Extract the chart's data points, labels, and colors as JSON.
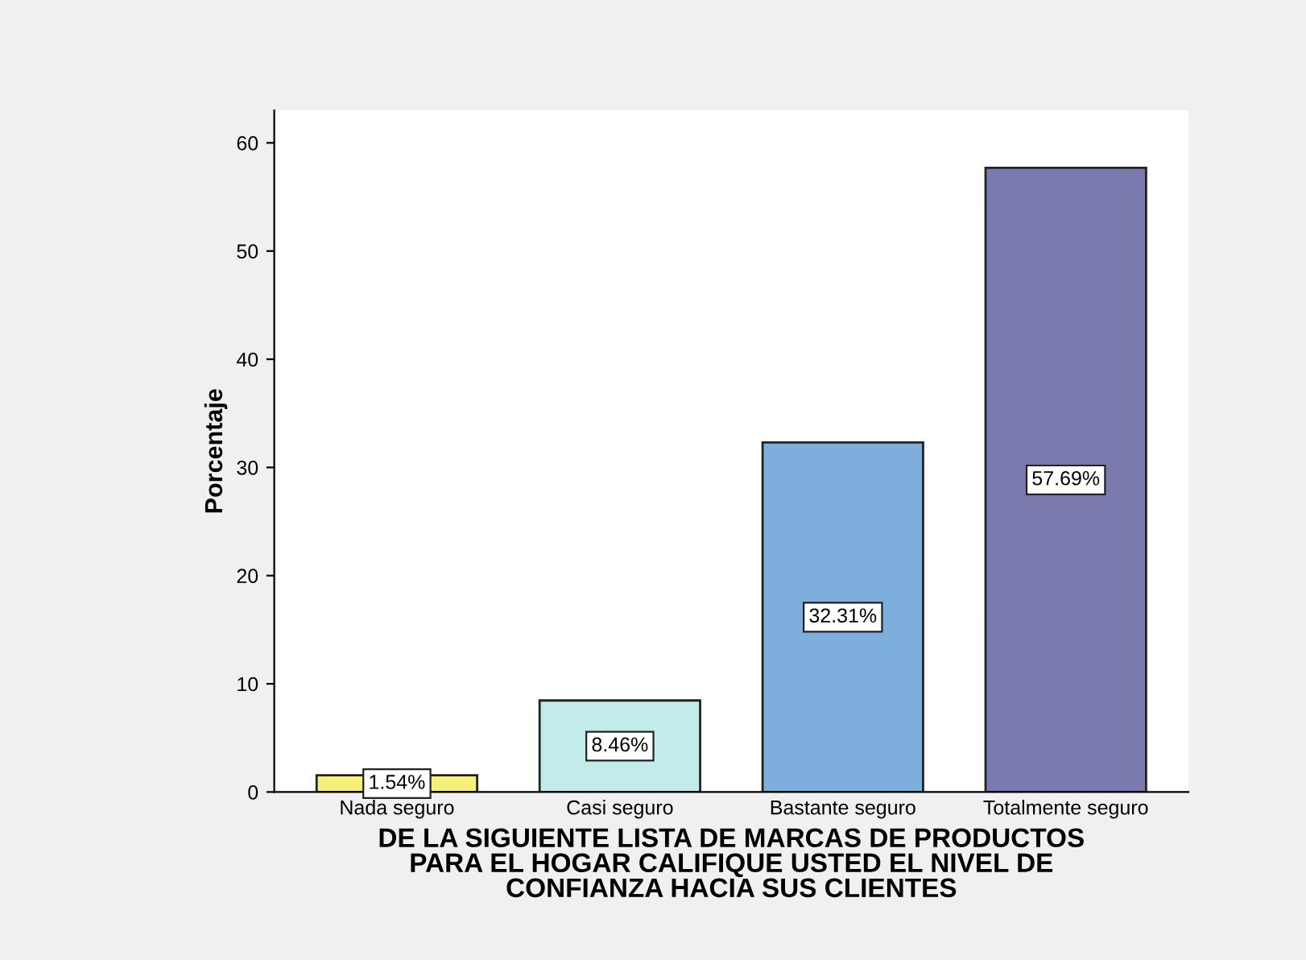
{
  "chart_data": {
    "type": "bar",
    "xlabel": "DE LA SIGUIENTE LISTA DE MARCAS DE PRODUCTOS\nPARA EL HOGAR CALIFIQUE USTED EL NIVEL DE\nCONFIANZA HACIA SUS CLIENTES",
    "ylabel": "Porcentaje",
    "categories": [
      "Nada seguro",
      "Casi seguro",
      "Bastante seguro",
      "Totalmente seguro"
    ],
    "values": [
      1.54,
      8.46,
      32.31,
      57.69
    ],
    "colors": [
      "#f4f07a",
      "#c2ecec",
      "#7eaedc",
      "#7a7aae"
    ],
    "value_labels": [
      "1.54%",
      "8.46%",
      "32.31%",
      "57.69%"
    ],
    "ylim": [
      0,
      63
    ],
    "yticks": [
      0,
      10,
      20,
      30,
      40,
      50,
      60
    ],
    "grid": false
  }
}
